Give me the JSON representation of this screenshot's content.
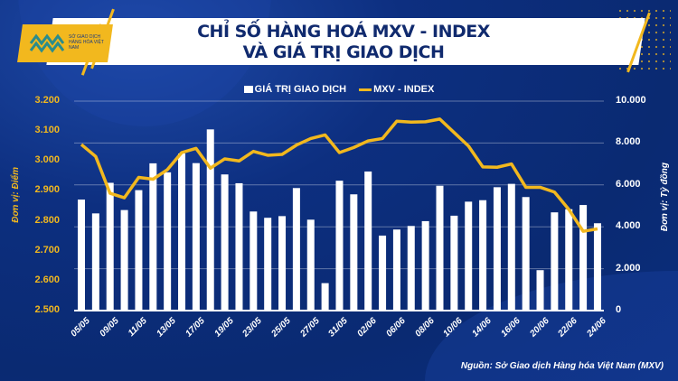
{
  "header": {
    "title_line1": "CHỈ SỐ HÀNG HOÁ MXV - INDEX",
    "title_line2": "VÀ GIÁ TRỊ GIAO DỊCH",
    "logo_text": "SỞ GIAO DỊCH HÀNG HÓA VIỆT NAM"
  },
  "footer": {
    "source": "Nguồn: Sở Giao dịch Hàng hóa Việt Nam (MXV)"
  },
  "colors": {
    "background": "#0b2e7e",
    "bars": "#ffffff",
    "line": "#f2b81e",
    "left_axis": "#f2b81e",
    "right_axis": "#ffffff"
  },
  "chart_data": {
    "type": "bar+line",
    "legend": {
      "placement": "top-center",
      "entries": [
        "GIÁ TRỊ GIAO DỊCH",
        "MXV - INDEX"
      ]
    },
    "left_axis": {
      "label": "Đơn vị: Điểm",
      "range": [
        2500,
        3200
      ],
      "ticks": [
        "2.500",
        "2.600",
        "2.700",
        "2.800",
        "2.900",
        "3.000",
        "3.100",
        "3.200"
      ]
    },
    "right_axis": {
      "label": "Đơn vị: Tỷ đồng",
      "range": [
        0,
        10000
      ],
      "ticks": [
        "0",
        "2.000",
        "4.000",
        "6.000",
        "8.000",
        "10.000"
      ]
    },
    "grid": true,
    "x_tick_labels": [
      "05/05",
      "09/05",
      "11/05",
      "13/05",
      "17/05",
      "19/05",
      "23/05",
      "25/05",
      "27/05",
      "31/05",
      "02/06",
      "06/06",
      "08/06",
      "10/06",
      "14/06",
      "16/06",
      "20/06",
      "22/06",
      "24/06"
    ],
    "x_tick_every": 2,
    "series": [
      {
        "name": "GIÁ TRỊ GIAO DỊCH",
        "type": "bar",
        "axis": "right",
        "values": [
          5300,
          4640,
          6100,
          4800,
          5750,
          7030,
          6600,
          7500,
          7040,
          8650,
          6500,
          6080,
          4730,
          4430,
          4510,
          5850,
          4340,
          1310,
          6200,
          5550,
          6640,
          3580,
          3870,
          4040,
          4270,
          5960,
          4530,
          5200,
          5270,
          5890,
          6050,
          5420,
          1930,
          4690,
          4840,
          5040,
          4170
        ]
      },
      {
        "name": "MXV - INDEX",
        "type": "line",
        "axis": "left",
        "values": [
          3055,
          3015,
          2892,
          2877,
          2945,
          2939,
          2971,
          3028,
          3042,
          2976,
          3007,
          3000,
          3032,
          3019,
          3022,
          3053,
          3075,
          3087,
          3028,
          3045,
          3067,
          3075,
          3133,
          3130,
          3131,
          3140,
          3095,
          3050,
          2980,
          2979,
          2990,
          2912,
          2912,
          2896,
          2838,
          2765,
          2773
        ]
      }
    ]
  }
}
